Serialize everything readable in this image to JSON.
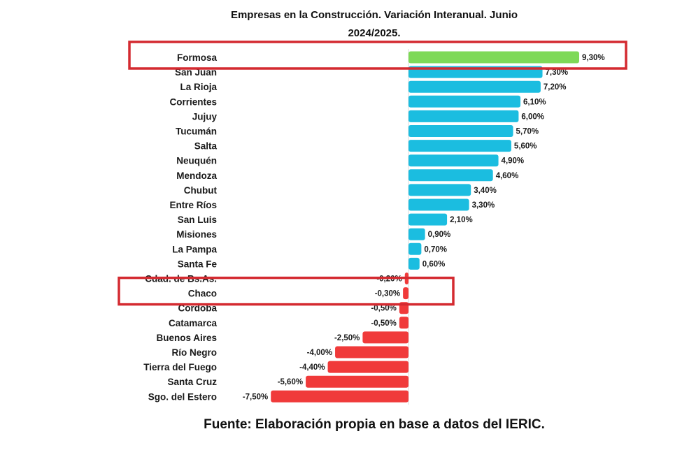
{
  "chart_data": {
    "type": "bar",
    "orientation": "horizontal",
    "title": "Empresas en la Construcción. Variación Interanual. Junio 2024/2025.",
    "title_lines": [
      "Empresas en la Construcción. Variación Interanual. Junio",
      "2024/2025."
    ],
    "categories": [
      "Formosa",
      "San Juan",
      "La Rioja",
      "Corrientes",
      "Jujuy",
      "Tucumán",
      "Salta",
      "Neuquén",
      "Mendoza",
      "Chubut",
      "Entre Ríos",
      "San Luis",
      "Misiones",
      "La Pampa",
      "Santa Fe",
      "Cdad. de Bs.As.",
      "Chaco",
      "Córdoba",
      "Catamarca",
      "Buenos Aires",
      "Río Negro",
      "Tierra del Fuego",
      "Santa Cruz",
      "Sgo. del Estero"
    ],
    "values": [
      9.3,
      7.3,
      7.2,
      6.1,
      6.0,
      5.7,
      5.6,
      4.9,
      4.6,
      3.4,
      3.3,
      2.1,
      0.9,
      0.7,
      0.6,
      -0.2,
      -0.3,
      -0.5,
      -0.5,
      -2.5,
      -4.0,
      -4.4,
      -5.6,
      -7.5
    ],
    "value_labels": [
      "9,30%",
      "7,30%",
      "7,20%",
      "6,10%",
      "6,00%",
      "5,70%",
      "5,60%",
      "4,90%",
      "4,60%",
      "3,40%",
      "3,30%",
      "2,10%",
      "0,90%",
      "0,70%",
      "0,60%",
      "-0,20%",
      "-0,30%",
      "-0,50%",
      "-0,50%",
      "-2,50%",
      "-4,00%",
      "-4,40%",
      "-5,60%",
      "-7,50%"
    ],
    "unit": "%",
    "xlim": [
      -7.5,
      9.3
    ],
    "grid": false,
    "legend": "none",
    "highlighted": [
      "Formosa",
      "Chaco"
    ],
    "colors": {
      "positive": "#1bbde0",
      "negative": "#f03a3a",
      "top": "#7ed957",
      "highlight_box": "#d42a30"
    },
    "source_note": "Fuente: Elaboración propia en base a datos del IERIC."
  }
}
